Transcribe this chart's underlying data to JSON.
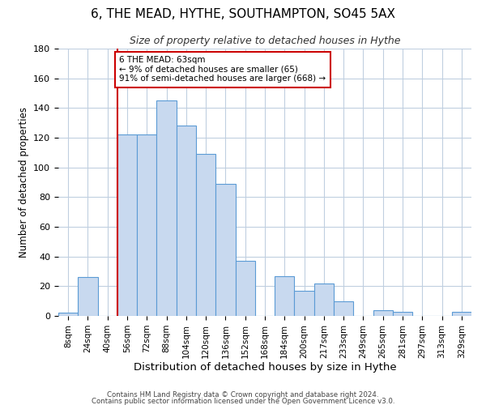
{
  "title": "6, THE MEAD, HYTHE, SOUTHAMPTON, SO45 5AX",
  "subtitle": "Size of property relative to detached houses in Hythe",
  "xlabel": "Distribution of detached houses by size in Hythe",
  "ylabel": "Number of detached properties",
  "bin_labels": [
    "8sqm",
    "24sqm",
    "40sqm",
    "56sqm",
    "72sqm",
    "88sqm",
    "104sqm",
    "120sqm",
    "136sqm",
    "152sqm",
    "168sqm",
    "184sqm",
    "200sqm",
    "217sqm",
    "233sqm",
    "249sqm",
    "265sqm",
    "281sqm",
    "297sqm",
    "313sqm",
    "329sqm"
  ],
  "bin_values": [
    2,
    26,
    0,
    122,
    122,
    145,
    128,
    109,
    89,
    37,
    0,
    27,
    17,
    22,
    10,
    0,
    4,
    3,
    0,
    0,
    3
  ],
  "bar_color": "#c8d9ef",
  "bar_edge_color": "#5b9bd5",
  "ylim": [
    0,
    180
  ],
  "yticks": [
    0,
    20,
    40,
    60,
    80,
    100,
    120,
    140,
    160,
    180
  ],
  "property_label": "6 THE MEAD: 63sqm",
  "annotation_line1": "← 9% of detached houses are smaller (65)",
  "annotation_line2": "91% of semi-detached houses are larger (668) →",
  "vline_bin_index": 3,
  "vline_color": "#cc0000",
  "annotation_box_color": "#ffffff",
  "annotation_box_edge_color": "#cc0000",
  "footer1": "Contains HM Land Registry data © Crown copyright and database right 2024.",
  "footer2": "Contains public sector information licensed under the Open Government Licence v3.0.",
  "background_color": "#ffffff",
  "grid_color": "#c0cfe0"
}
